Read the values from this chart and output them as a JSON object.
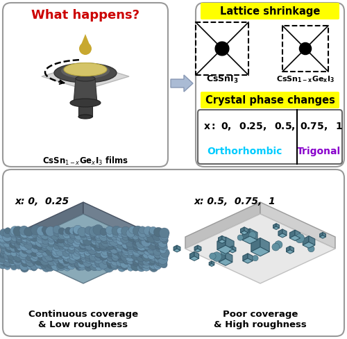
{
  "what_happens_text": "What happens?",
  "cssngei3_films_label": "CsSn$_{1-x}$Ge$_x$I$_3$ films",
  "lattice_shrinkage_label": "Lattice shrinkage",
  "crystal_phase_label": "Crystal phase changes",
  "orthorhombic_label": "Orthorhombic",
  "trigonal_label": "Trigonal",
  "continuous_label": "Continuous coverage\n& Low roughness",
  "poor_label": "Poor coverage\n& High roughness",
  "x_left_label": "x: 0,  0.25",
  "x_right_label": "x: 0.5,  0.75,  1",
  "bg_color": "#ffffff",
  "yellow_highlight": "#ffff00",
  "cyan_text": "#00ccff",
  "purple_text": "#8800cc",
  "red_text": "#cc0000",
  "arrow_color": "#aabbd0",
  "box_ec": "#999999",
  "droplet_color": "#c8a830",
  "disk_color": "#d4c070",
  "platform_color": "#d0d0d0",
  "spinner_dark": "#555555",
  "spinner_darker": "#383838",
  "teal_light": "#7a9fb5",
  "teal_dark": "#5a7a90",
  "teal_side": "#6a8a9a",
  "gray_light": "#e0e0e0",
  "gray_mid": "#c8c8c8",
  "gray_dark": "#b0b0b0"
}
